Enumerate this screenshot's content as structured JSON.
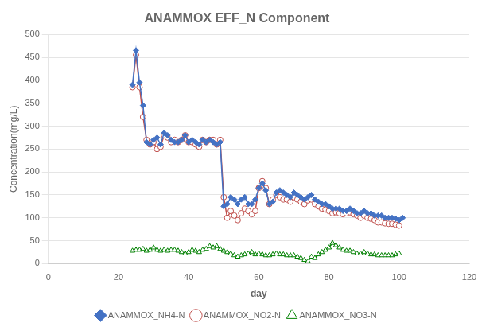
{
  "chart_data": {
    "type": "line",
    "title": "ANAMMOX EFF_N Component",
    "x_label": "day",
    "y_label": "Concentration(mg/L)",
    "xlim": [
      0,
      120
    ],
    "ylim": [
      0,
      500
    ],
    "xticks": [
      0,
      20,
      40,
      60,
      80,
      100,
      120
    ],
    "yticks": [
      0,
      50,
      100,
      150,
      200,
      250,
      300,
      350,
      400,
      450,
      500
    ],
    "grid": "y",
    "legend": "bottom",
    "series": [
      {
        "name": "ANAMMOX_NH4-N",
        "color": "#4472C4",
        "marker": "diamond",
        "x": [
          24,
          25,
          26,
          27,
          28,
          29,
          30,
          31,
          32,
          33,
          34,
          35,
          36,
          37,
          38,
          39,
          40,
          41,
          42,
          43,
          44,
          45,
          46,
          47,
          48,
          49,
          50,
          51,
          52,
          53,
          54,
          55,
          56,
          57,
          58,
          59,
          60,
          61,
          62,
          63,
          64,
          65,
          66,
          67,
          68,
          69,
          70,
          71,
          72,
          73,
          74,
          75,
          76,
          77,
          78,
          79,
          80,
          81,
          82,
          83,
          84,
          85,
          86,
          87,
          88,
          89,
          90,
          91,
          92,
          93,
          94,
          95,
          96,
          97,
          98,
          99,
          100,
          101
        ],
        "values": [
          390,
          465,
          395,
          345,
          265,
          260,
          270,
          275,
          260,
          285,
          280,
          270,
          265,
          265,
          270,
          280,
          265,
          270,
          265,
          260,
          270,
          265,
          270,
          265,
          260,
          265,
          125,
          130,
          145,
          140,
          130,
          140,
          145,
          130,
          130,
          140,
          165,
          175,
          160,
          130,
          135,
          155,
          160,
          155,
          150,
          145,
          155,
          150,
          145,
          140,
          145,
          150,
          140,
          135,
          130,
          130,
          125,
          120,
          120,
          120,
          115,
          115,
          120,
          115,
          110,
          110,
          115,
          110,
          110,
          105,
          105,
          105,
          100,
          100,
          100,
          98,
          95,
          100
        ]
      },
      {
        "name": "ANAMMOX_NO2-N",
        "color": "#C0504D",
        "marker": "open-circle",
        "x": [
          24,
          25,
          26,
          27,
          28,
          29,
          30,
          31,
          32,
          33,
          34,
          35,
          36,
          37,
          38,
          39,
          40,
          41,
          42,
          43,
          44,
          45,
          46,
          47,
          48,
          49,
          50,
          51,
          52,
          53,
          54,
          55,
          56,
          57,
          58,
          59,
          60,
          61,
          62,
          63,
          64,
          65,
          66,
          67,
          68,
          69,
          70,
          71,
          72,
          73,
          74,
          75,
          76,
          77,
          78,
          79,
          80,
          81,
          82,
          83,
          84,
          85,
          86,
          87,
          88,
          89,
          90,
          91,
          92,
          93,
          94,
          95,
          96,
          97,
          98,
          99,
          100
        ],
        "values": [
          385,
          455,
          385,
          320,
          270,
          260,
          265,
          250,
          255,
          280,
          275,
          265,
          270,
          265,
          270,
          280,
          265,
          265,
          260,
          255,
          270,
          265,
          270,
          270,
          260,
          270,
          145,
          100,
          115,
          105,
          95,
          110,
          120,
          115,
          108,
          115,
          165,
          180,
          165,
          130,
          140,
          150,
          145,
          140,
          140,
          135,
          145,
          140,
          135,
          130,
          138,
          140,
          130,
          125,
          120,
          118,
          115,
          110,
          112,
          110,
          108,
          110,
          112,
          108,
          105,
          100,
          105,
          100,
          98,
          95,
          90,
          90,
          88,
          87,
          87,
          85,
          83
        ]
      },
      {
        "name": "ANAMMOX_NO3-N",
        "color": "#008000",
        "marker": "open-triangle",
        "x": [
          24,
          25,
          26,
          27,
          28,
          29,
          30,
          31,
          32,
          33,
          34,
          35,
          36,
          37,
          38,
          39,
          40,
          41,
          42,
          43,
          44,
          45,
          46,
          47,
          48,
          49,
          50,
          51,
          52,
          53,
          54,
          55,
          56,
          57,
          58,
          59,
          60,
          61,
          62,
          63,
          64,
          65,
          66,
          67,
          68,
          69,
          70,
          71,
          72,
          73,
          74,
          75,
          76,
          77,
          78,
          79,
          80,
          81,
          82,
          83,
          84,
          85,
          86,
          87,
          88,
          89,
          90,
          91,
          92,
          93,
          94,
          95,
          96,
          97,
          98,
          99,
          100
        ],
        "values": [
          28,
          30,
          30,
          32,
          28,
          30,
          35,
          30,
          28,
          30,
          28,
          30,
          30,
          28,
          25,
          22,
          25,
          30,
          28,
          25,
          30,
          32,
          38,
          35,
          38,
          32,
          28,
          25,
          22,
          18,
          15,
          18,
          20,
          22,
          25,
          20,
          22,
          20,
          18,
          18,
          20,
          22,
          20,
          20,
          18,
          18,
          18,
          15,
          12,
          8,
          5,
          15,
          12,
          20,
          25,
          30,
          35,
          45,
          40,
          35,
          30,
          28,
          28,
          25,
          22,
          22,
          25,
          22,
          20,
          20,
          18,
          18,
          18,
          18,
          18,
          20,
          22
        ]
      }
    ]
  }
}
